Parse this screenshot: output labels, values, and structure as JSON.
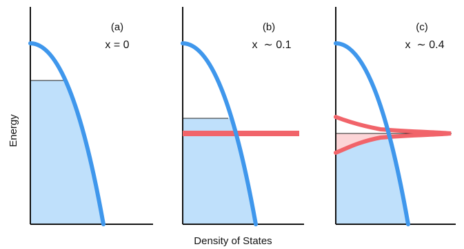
{
  "y_axis_label": "Energy",
  "x_axis_label": "Density of States",
  "panels": [
    {
      "id": "a",
      "tag": "(a)",
      "doping": "x = 0",
      "band_color": "#3f97ec",
      "filled_color": "#bfe0fb",
      "impurity_band": "none"
    },
    {
      "id": "b",
      "tag": "(b)",
      "doping": "x  ∼ 0.1",
      "band_color": "#3f97ec",
      "filled_color": "#bfe0fb",
      "impurity_band": "flat",
      "impurity_color": "#f1646a"
    },
    {
      "id": "c",
      "tag": "(c)",
      "doping": "x  ∼ 0.4",
      "band_color": "#3f97ec",
      "filled_color": "#bfe0fb",
      "impurity_band": "broadened",
      "impurity_color": "#f1646a",
      "impurity_fill": "#fcd5d7"
    }
  ]
}
